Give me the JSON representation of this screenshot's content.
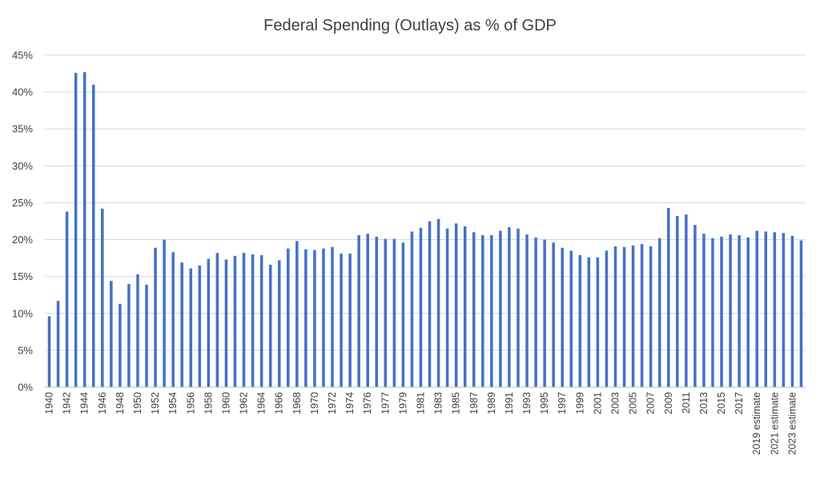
{
  "chart_data": {
    "type": "bar",
    "title": "Federal Spending (Outlays) as % of GDP",
    "xlabel": "",
    "ylabel": "",
    "ylim": [
      0,
      45
    ],
    "y_ticks": [
      "0%",
      "5%",
      "10%",
      "15%",
      "20%",
      "25%",
      "30%",
      "35%",
      "40%",
      "45%"
    ],
    "y_tick_values": [
      0,
      5,
      10,
      15,
      20,
      25,
      30,
      35,
      40,
      45
    ],
    "grid": "horizontal",
    "bar_color": "#4472c4",
    "categories": [
      "1940",
      "1941",
      "1942",
      "1943",
      "1944",
      "1945",
      "1946",
      "1947",
      "1948",
      "1949",
      "1950",
      "1951",
      "1952",
      "1953",
      "1954",
      "1955",
      "1956",
      "1957",
      "1958",
      "1959",
      "1960",
      "1961",
      "1962",
      "1963",
      "1964",
      "1965",
      "1966",
      "1967",
      "1968",
      "1969",
      "1970",
      "1971",
      "1972",
      "1973",
      "1974",
      "1975",
      "1976",
      "TQ",
      "1977",
      "1978",
      "1979",
      "1980",
      "1981",
      "1982",
      "1983",
      "1984",
      "1985",
      "1986",
      "1987",
      "1988",
      "1989",
      "1990",
      "1991",
      "1992",
      "1993",
      "1994",
      "1995",
      "1996",
      "1997",
      "1998",
      "1999",
      "2000",
      "2001",
      "2002",
      "2003",
      "2004",
      "2005",
      "2006",
      "2007",
      "2008",
      "2009",
      "2010",
      "2011",
      "2012",
      "2013",
      "2014",
      "2015",
      "2016",
      "2017",
      "2018",
      "2019 estimate",
      "2020 estimate",
      "2021 estimate",
      "2022 estimate",
      "2023 estimate",
      "2024 estimate"
    ],
    "visible_tick_labels": [
      "1940",
      "1942",
      "1944",
      "1946",
      "1948",
      "1950",
      "1952",
      "1954",
      "1956",
      "1958",
      "1960",
      "1962",
      "1964",
      "1966",
      "1968",
      "1970",
      "1972",
      "1974",
      "1976",
      "1977",
      "1979",
      "1981",
      "1983",
      "1985",
      "1987",
      "1989",
      "1991",
      "1993",
      "1995",
      "1997",
      "1999",
      "2001",
      "2003",
      "2005",
      "2007",
      "2009",
      "2011",
      "2013",
      "2015",
      "2017",
      "2019 estimate",
      "2021 estimate",
      "2023 estimate"
    ],
    "values": [
      9.6,
      11.7,
      23.8,
      42.6,
      42.7,
      41.0,
      24.2,
      14.4,
      11.3,
      14.0,
      15.3,
      13.9,
      18.9,
      20.0,
      18.3,
      16.9,
      16.1,
      16.5,
      17.4,
      18.2,
      17.3,
      17.8,
      18.2,
      18.0,
      17.9,
      16.6,
      17.2,
      18.8,
      19.8,
      18.7,
      18.6,
      18.8,
      19.0,
      18.1,
      18.1,
      20.6,
      20.8,
      20.4,
      20.1,
      20.1,
      19.6,
      21.1,
      21.6,
      22.5,
      22.8,
      21.5,
      22.2,
      21.8,
      21.0,
      20.6,
      20.6,
      21.2,
      21.7,
      21.5,
      20.7,
      20.3,
      20.0,
      19.6,
      18.9,
      18.5,
      17.9,
      17.6,
      17.6,
      18.5,
      19.1,
      19.0,
      19.2,
      19.4,
      19.1,
      20.2,
      24.3,
      23.2,
      23.4,
      22.0,
      20.8,
      20.2,
      20.4,
      20.7,
      20.6,
      20.3,
      21.2,
      21.1,
      21.0,
      20.9,
      20.5,
      19.9
    ]
  }
}
